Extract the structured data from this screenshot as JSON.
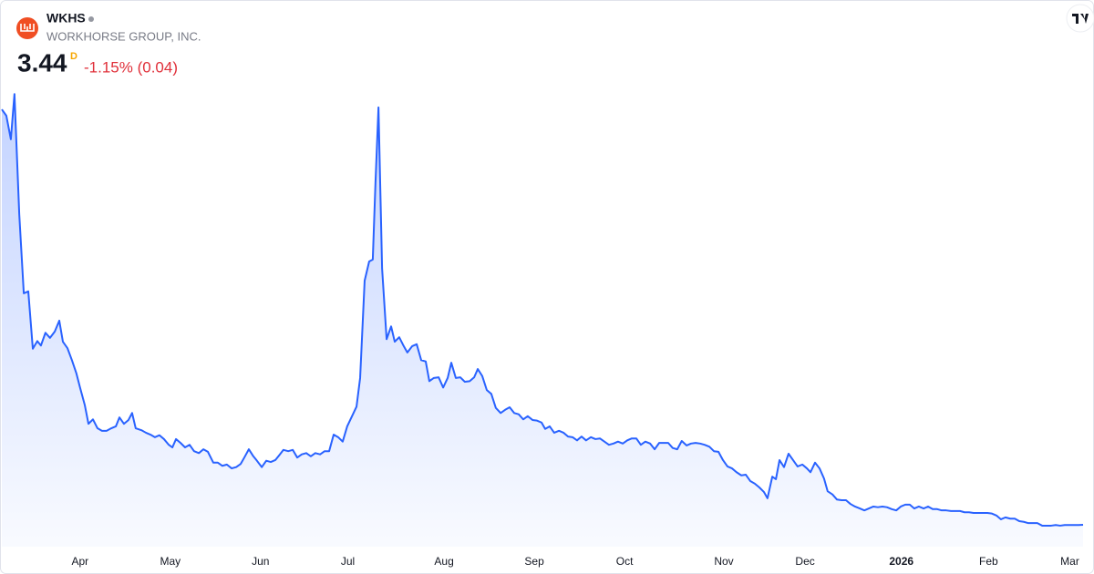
{
  "header": {
    "symbol": "WKHS",
    "name": "WORKHORSE GROUP, INC.",
    "price": "3.44",
    "price_flag": "D",
    "change": "-1.15% (0.04)"
  },
  "chart_data": {
    "type": "area",
    "color": "#2962ff",
    "xlim": [
      0,
      360
    ],
    "ylim": [
      0,
      75
    ],
    "xticks": [
      {
        "value": 26,
        "label": "Apr"
      },
      {
        "value": 56,
        "label": "May"
      },
      {
        "value": 86,
        "label": "Jun"
      },
      {
        "value": 115,
        "label": "Jul"
      },
      {
        "value": 147,
        "label": "Aug"
      },
      {
        "value": 177,
        "label": "Sep"
      },
      {
        "value": 207,
        "label": "Oct"
      },
      {
        "value": 240,
        "label": "Nov"
      },
      {
        "value": 267,
        "label": "Dec"
      },
      {
        "value": 299,
        "label": "2026"
      },
      {
        "value": 328,
        "label": "Feb"
      },
      {
        "value": 355,
        "label": "Mar"
      }
    ],
    "x": [
      0,
      1.5,
      3,
      4.2,
      5.8,
      7.3,
      8.8,
      10.3,
      11.8,
      13,
      14.5,
      16,
      17.6,
      19.1,
      20.3,
      21.8,
      23.3,
      24.8,
      26,
      27.6,
      28.8,
      30.3,
      31.8,
      33.3,
      34.8,
      36.4,
      37.9,
      39.1,
      40.6,
      42.1,
      43.3,
      44.5,
      46.4,
      47.9,
      49.4,
      50.9,
      52.4,
      53.9,
      55.5,
      56.7,
      57.9,
      59.4,
      60.9,
      62.4,
      63.9,
      65.5,
      67,
      68.5,
      70.3,
      71.8,
      73.3,
      74.8,
      76.4,
      77.9,
      79.4,
      80.6,
      82.1,
      83.6,
      84.8,
      86.4,
      87.9,
      89.4,
      90.9,
      92.1,
      93.6,
      95.2,
      96.7,
      98.2,
      99.7,
      101.2,
      102.7,
      104.2,
      105.8,
      107.3,
      108.8,
      110.3,
      111.8,
      113.3,
      114.8,
      116.4,
      117.9,
      119.1,
      120.6,
      122.1,
      123.3,
      124.2,
      125.2,
      126.4,
      127.9,
      129.4,
      130.6,
      132.1,
      133.6,
      134.8,
      136.4,
      137.9,
      139.4,
      140.9,
      142.1,
      143.6,
      145.2,
      146.7,
      148.2,
      149.4,
      150.9,
      152.4,
      153.9,
      155.5,
      157,
      158.2,
      159.7,
      161.2,
      162.7,
      164.2,
      165.8,
      167.3,
      168.8,
      170.3,
      171.8,
      173.3,
      174.8,
      176.4,
      177.9,
      179.4,
      180.6,
      182.1,
      183.6,
      185.2,
      186.7,
      188.2,
      189.7,
      191.2,
      192.7,
      194.2,
      195.8,
      197.3,
      198.8,
      200.3,
      201.8,
      203.3,
      204.8,
      206.4,
      207.9,
      209.4,
      210.9,
      212.4,
      213.9,
      215.5,
      217,
      218.5,
      220,
      221.5,
      223,
      224.5,
      226,
      227.6,
      229.1,
      230.6,
      232.1,
      233.6,
      235.2,
      236.7,
      238.2,
      239.7,
      241.2,
      242.7,
      244.2,
      245.8,
      247.3,
      248.8,
      250.3,
      251.8,
      253.3,
      254.5,
      256.1,
      257.3,
      258.5,
      260,
      261.5,
      263,
      264.5,
      266.1,
      267.6,
      268.8,
      270.3,
      271.8,
      273.3,
      274.5,
      276.1,
      277.6,
      279.1,
      280.6,
      282.1,
      283.6,
      285.2,
      286.7,
      288.2,
      289.7,
      291.2,
      292.7,
      294.2,
      295.8,
      297.3,
      298.8,
      300.3,
      301.8,
      303.3,
      304.8,
      306.4,
      307.9,
      309.4,
      310.9,
      312.4,
      313.9,
      315.5,
      317,
      318.5,
      320,
      321.5,
      323,
      324.5,
      326.1,
      327.6,
      329.1,
      330.6,
      332.1,
      333.6,
      335.2,
      336.7,
      338.2,
      339.7,
      341.2,
      342.7,
      344.2,
      345.8,
      347.3,
      348.8,
      350.3,
      351.8,
      353.3,
      354.8,
      356.4,
      357.9,
      359.4
    ],
    "values": [
      68.7,
      67.7,
      64.0,
      71.1,
      52.2,
      39.8,
      40.1,
      31.1,
      32.3,
      31.6,
      33.6,
      32.8,
      33.8,
      35.5,
      32.2,
      31.2,
      29.3,
      27.2,
      25.0,
      22.2,
      19.3,
      20.0,
      18.6,
      18.2,
      18.2,
      18.6,
      18.9,
      20.3,
      19.3,
      19.9,
      21.0,
      18.6,
      18.3,
      17.9,
      17.6,
      17.2,
      17.5,
      16.9,
      16.0,
      15.6,
      16.9,
      16.3,
      15.6,
      16.0,
      15.0,
      14.7,
      15.3,
      14.9,
      13.2,
      13.2,
      12.7,
      12.9,
      12.3,
      12.5,
      13.0,
      14.0,
      15.3,
      14.2,
      13.5,
      12.5,
      13.5,
      13.3,
      13.6,
      14.3,
      15.2,
      15.0,
      15.2,
      14.0,
      14.5,
      14.7,
      14.2,
      14.7,
      14.5,
      15.0,
      15.0,
      17.6,
      17.2,
      16.5,
      18.9,
      20.5,
      22.0,
      26.5,
      41.8,
      44.8,
      45.1,
      57.2,
      69.0,
      43.7,
      32.6,
      34.6,
      32.2,
      32.9,
      31.5,
      30.5,
      31.5,
      31.8,
      29.3,
      29.1,
      26.0,
      26.5,
      26.6,
      25.0,
      26.5,
      28.9,
      26.5,
      26.6,
      25.9,
      26.0,
      26.6,
      27.9,
      26.8,
      24.6,
      24.0,
      21.8,
      21.0,
      21.5,
      21.9,
      21.0,
      20.8,
      20.0,
      20.5,
      19.9,
      19.8,
      19.5,
      18.5,
      18.9,
      17.9,
      18.2,
      17.9,
      17.3,
      17.2,
      16.7,
      17.3,
      16.7,
      17.2,
      16.9,
      17.0,
      16.5,
      16.0,
      16.2,
      16.5,
      16.2,
      16.7,
      17.0,
      17.0,
      16.0,
      16.5,
      16.2,
      15.3,
      16.3,
      16.3,
      16.3,
      15.5,
      15.3,
      16.6,
      15.9,
      16.2,
      16.3,
      16.2,
      16.0,
      15.7,
      15.0,
      14.9,
      13.6,
      12.6,
      12.3,
      11.7,
      11.2,
      11.3,
      10.3,
      9.9,
      9.3,
      8.6,
      7.6,
      11.0,
      10.6,
      13.6,
      12.5,
      14.6,
      13.6,
      12.6,
      12.9,
      12.3,
      11.7,
      13.2,
      12.3,
      10.7,
      8.7,
      8.2,
      7.4,
      7.3,
      7.3,
      6.7,
      6.3,
      6.0,
      5.7,
      6.0,
      6.3,
      6.2,
      6.3,
      6.2,
      5.9,
      5.7,
      6.3,
      6.6,
      6.6,
      6.0,
      6.3,
      6.0,
      6.3,
      5.9,
      5.9,
      5.7,
      5.7,
      5.6,
      5.6,
      5.6,
      5.4,
      5.4,
      5.3,
      5.3,
      5.3,
      5.3,
      5.2,
      4.9,
      4.3,
      4.6,
      4.4,
      4.4,
      4.0,
      3.9,
      3.7,
      3.7,
      3.7,
      3.3,
      3.3,
      3.3,
      3.4,
      3.3,
      3.4,
      3.4,
      3.4,
      3.4,
      3.44
    ]
  }
}
